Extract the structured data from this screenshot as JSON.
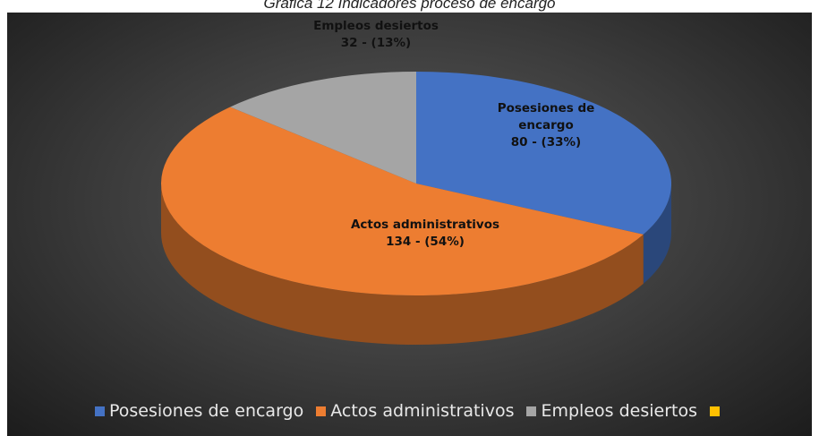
{
  "chart_data": {
    "type": "pie3d",
    "title": "Gráfica 12 Indicadores proceso de encargo",
    "categories": [
      "Posesiones de encargo",
      "Actos administrativos",
      "Empleos desiertos",
      null
    ],
    "values": [
      80,
      134,
      32,
      0
    ],
    "value_labels": [
      "80  -  (33%)",
      "134  -  (54%)",
      "32  -  (13%)",
      null
    ],
    "colors": [
      "#4472c4",
      "#ed7d31",
      "#a5a5a5",
      "#ffc000"
    ],
    "legend": "bottom"
  }
}
